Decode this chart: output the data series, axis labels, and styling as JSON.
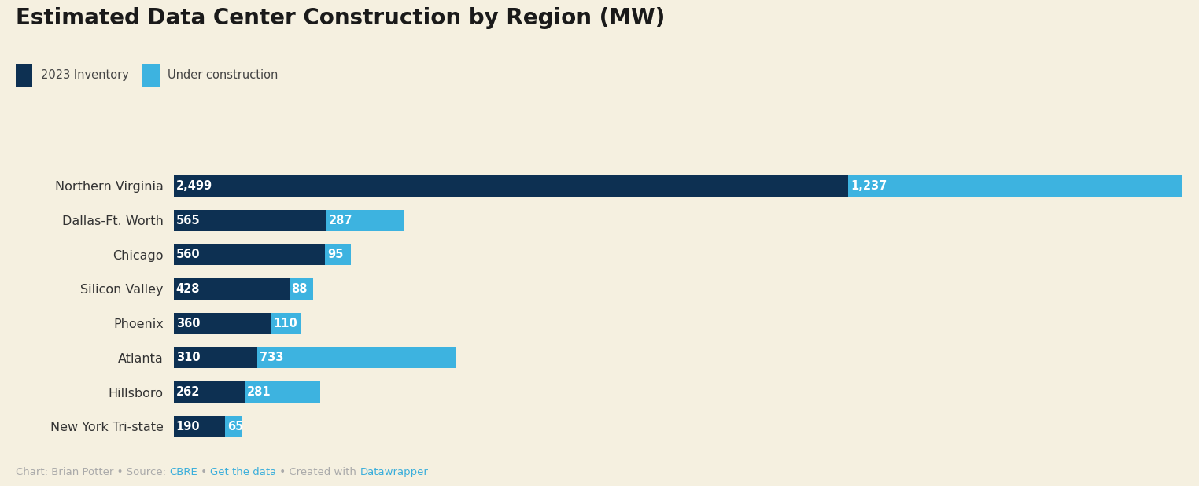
{
  "title": "Estimated Data Center Construction by Region (MW)",
  "background_color": "#f5f0e0",
  "legend": {
    "inventory_label": "2023 Inventory",
    "construction_label": "Under construction",
    "inventory_color": "#0d3052",
    "construction_color": "#3db3e0"
  },
  "regions": [
    "Northern Virginia",
    "Dallas-Ft. Worth",
    "Chicago",
    "Silicon Valley",
    "Phoenix",
    "Atlanta",
    "Hillsboro",
    "New York Tri-state"
  ],
  "inventory": [
    2499,
    565,
    560,
    428,
    360,
    310,
    262,
    190
  ],
  "construction": [
    1237,
    287,
    95,
    88,
    110,
    733,
    281,
    65
  ],
  "inventory_color": "#0d3052",
  "construction_color": "#3db3e0",
  "footer_gray": "#aaaaaa",
  "footer_blue": "#3aaedb"
}
